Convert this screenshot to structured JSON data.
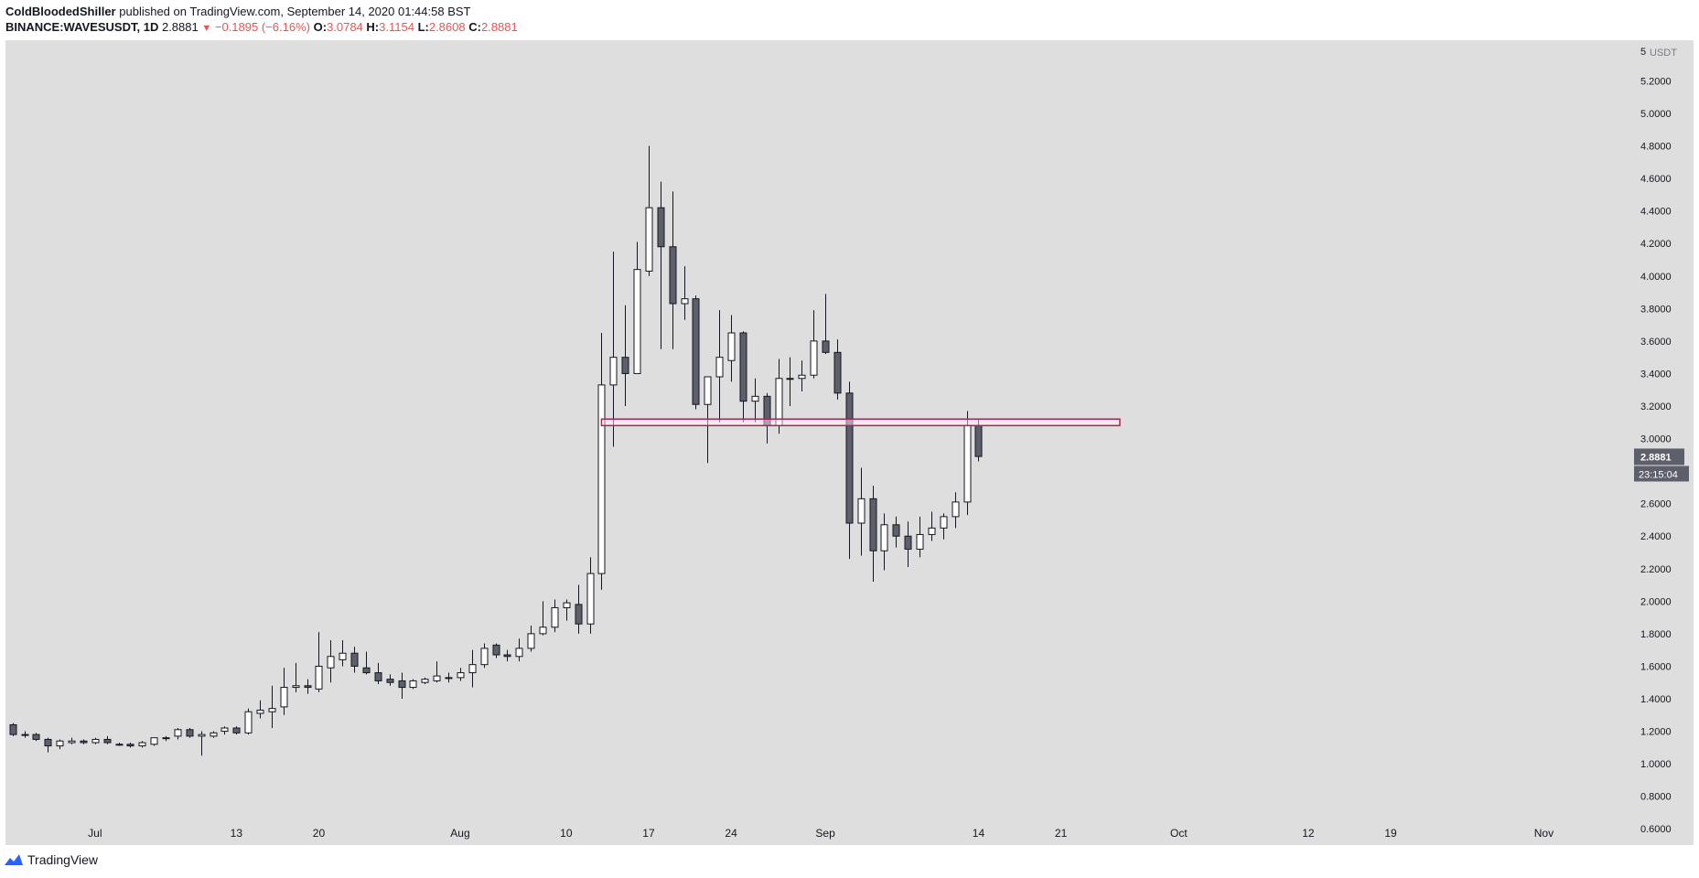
{
  "header": {
    "author": "ColdBloodedShiller",
    "published": "published on TradingView.com, September 14, 2020 01:44:58 BST",
    "symbol": "BINANCE:WAVESUSDT, 1D",
    "last": "2.8881",
    "change_arrow": "▼",
    "change": "−0.1895 (−6.16%)",
    "o_label": "O:",
    "o": "3.0784",
    "h_label": "H:",
    "h": "3.1154",
    "l_label": "L:",
    "l": "2.8608",
    "c_label": "C:",
    "c": "2.8881"
  },
  "footer": {
    "brand": "TradingView",
    "logo_icon": "tradingview-logo-icon"
  },
  "colors": {
    "plot_bg": "#dedede",
    "up_fill": "#ffffff",
    "down_fill": "#5d606b",
    "wick": "#131722",
    "level_line": "#c2185b",
    "price_tag_bg": "#5d606b"
  },
  "chart_data": {
    "type": "candlestick",
    "ylim": [
      0.5,
      5.45
    ],
    "y_axis_unit": "USDT",
    "y_axis_top_label": "5",
    "y_ticks": [
      "5.2000",
      "5.0000",
      "4.8000",
      "4.6000",
      "4.4000",
      "4.2000",
      "4.0000",
      "3.8000",
      "3.6000",
      "3.4000",
      "3.2000",
      "3.0000",
      "2.8000",
      "2.6000",
      "2.4000",
      "2.2000",
      "2.0000",
      "1.8000",
      "1.6000",
      "1.4000",
      "1.2000",
      "1.0000",
      "0.8000",
      "0.6000"
    ],
    "x_labels": [
      {
        "label": "Jul",
        "day": 0
      },
      {
        "label": "13",
        "day": 12
      },
      {
        "label": "20",
        "day": 19
      },
      {
        "label": "Aug",
        "day": 31
      },
      {
        "label": "10",
        "day": 40
      },
      {
        "label": "17",
        "day": 47
      },
      {
        "label": "24",
        "day": 54
      },
      {
        "label": "Sep",
        "day": 62
      },
      {
        "label": "14",
        "day": 75
      },
      {
        "label": "21",
        "day": 82
      },
      {
        "label": "Oct",
        "day": 92
      },
      {
        "label": "12",
        "day": 103
      },
      {
        "label": "19",
        "day": 110
      },
      {
        "label": "Nov",
        "day": 123
      }
    ],
    "day_range": [
      -7.6,
      130.5
    ],
    "ohlc": [
      {
        "d": -7,
        "o": 1.24,
        "h": 1.25,
        "l": 1.17,
        "c": 1.18
      },
      {
        "d": -6,
        "o": 1.18,
        "h": 1.2,
        "l": 1.16,
        "c": 1.18
      },
      {
        "d": -5,
        "o": 1.18,
        "h": 1.19,
        "l": 1.14,
        "c": 1.15
      },
      {
        "d": -4,
        "o": 1.15,
        "h": 1.16,
        "l": 1.07,
        "c": 1.11
      },
      {
        "d": -3,
        "o": 1.11,
        "h": 1.15,
        "l": 1.09,
        "c": 1.14
      },
      {
        "d": -2,
        "o": 1.13,
        "h": 1.16,
        "l": 1.12,
        "c": 1.14
      },
      {
        "d": -1,
        "o": 1.14,
        "h": 1.15,
        "l": 1.12,
        "c": 1.13
      },
      {
        "d": 0,
        "o": 1.13,
        "h": 1.16,
        "l": 1.12,
        "c": 1.15
      },
      {
        "d": 1,
        "o": 1.15,
        "h": 1.17,
        "l": 1.12,
        "c": 1.13
      },
      {
        "d": 2,
        "o": 1.12,
        "h": 1.13,
        "l": 1.11,
        "c": 1.12
      },
      {
        "d": 3,
        "o": 1.12,
        "h": 1.13,
        "l": 1.1,
        "c": 1.11
      },
      {
        "d": 4,
        "o": 1.11,
        "h": 1.14,
        "l": 1.1,
        "c": 1.13
      },
      {
        "d": 5,
        "o": 1.12,
        "h": 1.16,
        "l": 1.11,
        "c": 1.16
      },
      {
        "d": 6,
        "o": 1.16,
        "h": 1.17,
        "l": 1.14,
        "c": 1.16
      },
      {
        "d": 7,
        "o": 1.17,
        "h": 1.22,
        "l": 1.15,
        "c": 1.21
      },
      {
        "d": 8,
        "o": 1.21,
        "h": 1.22,
        "l": 1.16,
        "c": 1.17
      },
      {
        "d": 9,
        "o": 1.17,
        "h": 1.2,
        "l": 1.05,
        "c": 1.18
      },
      {
        "d": 10,
        "o": 1.17,
        "h": 1.2,
        "l": 1.16,
        "c": 1.19
      },
      {
        "d": 11,
        "o": 1.2,
        "h": 1.23,
        "l": 1.18,
        "c": 1.22
      },
      {
        "d": 12,
        "o": 1.22,
        "h": 1.23,
        "l": 1.18,
        "c": 1.19
      },
      {
        "d": 13,
        "o": 1.19,
        "h": 1.34,
        "l": 1.18,
        "c": 1.32
      },
      {
        "d": 14,
        "o": 1.31,
        "h": 1.39,
        "l": 1.28,
        "c": 1.33
      },
      {
        "d": 15,
        "o": 1.32,
        "h": 1.48,
        "l": 1.22,
        "c": 1.34
      },
      {
        "d": 16,
        "o": 1.35,
        "h": 1.59,
        "l": 1.3,
        "c": 1.47
      },
      {
        "d": 17,
        "o": 1.47,
        "h": 1.62,
        "l": 1.44,
        "c": 1.48
      },
      {
        "d": 18,
        "o": 1.48,
        "h": 1.52,
        "l": 1.43,
        "c": 1.47
      },
      {
        "d": 19,
        "o": 1.46,
        "h": 1.81,
        "l": 1.44,
        "c": 1.6
      },
      {
        "d": 20,
        "o": 1.59,
        "h": 1.76,
        "l": 1.5,
        "c": 1.66
      },
      {
        "d": 21,
        "o": 1.64,
        "h": 1.76,
        "l": 1.6,
        "c": 1.68
      },
      {
        "d": 22,
        "o": 1.68,
        "h": 1.72,
        "l": 1.56,
        "c": 1.6
      },
      {
        "d": 23,
        "o": 1.59,
        "h": 1.69,
        "l": 1.55,
        "c": 1.56
      },
      {
        "d": 24,
        "o": 1.56,
        "h": 1.62,
        "l": 1.49,
        "c": 1.51
      },
      {
        "d": 25,
        "o": 1.52,
        "h": 1.55,
        "l": 1.48,
        "c": 1.5
      },
      {
        "d": 26,
        "o": 1.51,
        "h": 1.56,
        "l": 1.4,
        "c": 1.47
      },
      {
        "d": 27,
        "o": 1.47,
        "h": 1.52,
        "l": 1.46,
        "c": 1.51
      },
      {
        "d": 28,
        "o": 1.5,
        "h": 1.53,
        "l": 1.49,
        "c": 1.52
      },
      {
        "d": 29,
        "o": 1.51,
        "h": 1.63,
        "l": 1.5,
        "c": 1.54
      },
      {
        "d": 30,
        "o": 1.53,
        "h": 1.56,
        "l": 1.5,
        "c": 1.53
      },
      {
        "d": 31,
        "o": 1.53,
        "h": 1.59,
        "l": 1.51,
        "c": 1.56
      },
      {
        "d": 32,
        "o": 1.56,
        "h": 1.7,
        "l": 1.47,
        "c": 1.61
      },
      {
        "d": 33,
        "o": 1.61,
        "h": 1.74,
        "l": 1.59,
        "c": 1.71
      },
      {
        "d": 34,
        "o": 1.73,
        "h": 1.74,
        "l": 1.65,
        "c": 1.67
      },
      {
        "d": 35,
        "o": 1.67,
        "h": 1.7,
        "l": 1.63,
        "c": 1.66
      },
      {
        "d": 36,
        "o": 1.66,
        "h": 1.77,
        "l": 1.63,
        "c": 1.71
      },
      {
        "d": 37,
        "o": 1.71,
        "h": 1.85,
        "l": 1.69,
        "c": 1.8
      },
      {
        "d": 38,
        "o": 1.8,
        "h": 2,
        "l": 1.79,
        "c": 1.84
      },
      {
        "d": 39,
        "o": 1.84,
        "h": 2.01,
        "l": 1.81,
        "c": 1.96
      },
      {
        "d": 40,
        "o": 1.96,
        "h": 2.01,
        "l": 1.88,
        "c": 1.99
      },
      {
        "d": 41,
        "o": 1.98,
        "h": 2.1,
        "l": 1.8,
        "c": 1.86
      },
      {
        "d": 42,
        "o": 1.86,
        "h": 2.27,
        "l": 1.8,
        "c": 2.17
      },
      {
        "d": 43,
        "o": 2.17,
        "h": 3.65,
        "l": 2.07,
        "c": 3.33
      },
      {
        "d": 44,
        "o": 3.33,
        "h": 4.15,
        "l": 2.95,
        "c": 3.5
      },
      {
        "d": 45,
        "o": 3.5,
        "h": 3.82,
        "l": 3.2,
        "c": 3.4
      },
      {
        "d": 46,
        "o": 3.4,
        "h": 4.21,
        "l": 3.4,
        "c": 4.04
      },
      {
        "d": 47,
        "o": 4.03,
        "h": 4.8,
        "l": 4.0,
        "c": 4.42
      },
      {
        "d": 48,
        "o": 4.42,
        "h": 4.58,
        "l": 3.55,
        "c": 4.18
      },
      {
        "d": 49,
        "o": 4.18,
        "h": 4.52,
        "l": 3.55,
        "c": 3.83
      },
      {
        "d": 50,
        "o": 3.83,
        "h": 4.06,
        "l": 3.73,
        "c": 3.86
      },
      {
        "d": 51,
        "o": 3.86,
        "h": 3.88,
        "l": 3.18,
        "c": 3.21
      },
      {
        "d": 52,
        "o": 3.21,
        "h": 3.37,
        "l": 2.85,
        "c": 3.38
      },
      {
        "d": 53,
        "o": 3.38,
        "h": 3.79,
        "l": 3.1,
        "c": 3.5
      },
      {
        "d": 54,
        "o": 3.48,
        "h": 3.76,
        "l": 3.35,
        "c": 3.65
      },
      {
        "d": 55,
        "o": 3.65,
        "h": 3.66,
        "l": 3.1,
        "c": 3.23
      },
      {
        "d": 56,
        "o": 3.23,
        "h": 3.37,
        "l": 3.1,
        "c": 3.26
      },
      {
        "d": 57,
        "o": 3.26,
        "h": 3.28,
        "l": 2.97,
        "c": 3.08
      },
      {
        "d": 58,
        "o": 3.08,
        "h": 3.49,
        "l": 3.03,
        "c": 3.37
      },
      {
        "d": 59,
        "o": 3.37,
        "h": 3.5,
        "l": 3.2,
        "c": 3.37
      },
      {
        "d": 60,
        "o": 3.37,
        "h": 3.48,
        "l": 3.29,
        "c": 3.39
      },
      {
        "d": 61,
        "o": 3.39,
        "h": 3.79,
        "l": 3.37,
        "c": 3.6
      },
      {
        "d": 62,
        "o": 3.6,
        "h": 3.89,
        "l": 3.52,
        "c": 3.53
      },
      {
        "d": 63,
        "o": 3.53,
        "h": 3.61,
        "l": 3.24,
        "c": 3.28
      },
      {
        "d": 64,
        "o": 3.28,
        "h": 3.35,
        "l": 2.26,
        "c": 2.48
      },
      {
        "d": 65,
        "o": 2.48,
        "h": 2.82,
        "l": 2.28,
        "c": 2.63
      },
      {
        "d": 66,
        "o": 2.63,
        "h": 2.71,
        "l": 2.12,
        "c": 2.31
      },
      {
        "d": 67,
        "o": 2.31,
        "h": 2.54,
        "l": 2.19,
        "c": 2.47
      },
      {
        "d": 68,
        "o": 2.47,
        "h": 2.52,
        "l": 2.33,
        "c": 2.4
      },
      {
        "d": 69,
        "o": 2.4,
        "h": 2.49,
        "l": 2.21,
        "c": 2.32
      },
      {
        "d": 70,
        "o": 2.32,
        "h": 2.52,
        "l": 2.27,
        "c": 2.41
      },
      {
        "d": 71,
        "o": 2.41,
        "h": 2.55,
        "l": 2.37,
        "c": 2.45
      },
      {
        "d": 72,
        "o": 2.45,
        "h": 2.54,
        "l": 2.38,
        "c": 2.52
      },
      {
        "d": 73,
        "o": 2.52,
        "h": 2.67,
        "l": 2.45,
        "c": 2.61
      },
      {
        "d": 74,
        "o": 2.61,
        "h": 3.17,
        "l": 2.53,
        "c": 3.08
      },
      {
        "d": 75,
        "o": 3.08,
        "h": 3.12,
        "l": 2.86,
        "c": 2.89
      }
    ],
    "horizontal_levels": [
      {
        "price_low": 3.08,
        "price_high": 3.12,
        "from_day": 43,
        "to_day": 87
      }
    ],
    "price_tag": "2.8881",
    "countdown_tag": "23:15:04"
  }
}
